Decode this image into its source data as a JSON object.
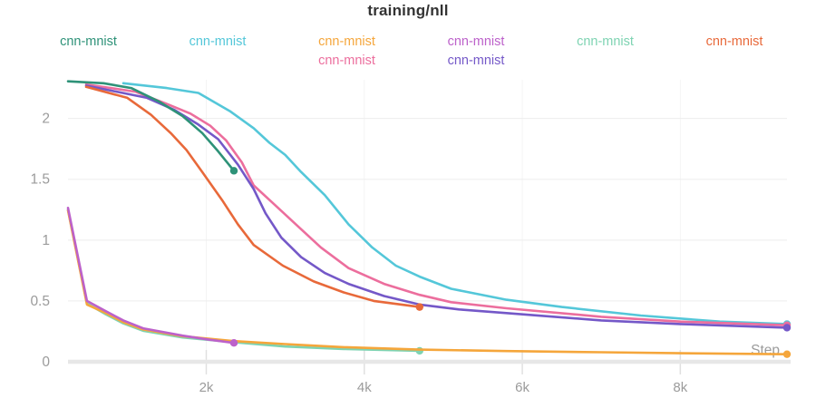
{
  "title": "training/nll",
  "legend": {
    "items": [
      {
        "label": "cnn-mnist",
        "color": "#2e9278",
        "col": 0,
        "row": 0
      },
      {
        "label": "cnn-mnist",
        "color": "#54c7d9",
        "col": 1,
        "row": 0
      },
      {
        "label": "cnn-mnist",
        "color": "#f5a63b",
        "col": 2,
        "row": 0
      },
      {
        "label": "cnn-mnist",
        "color": "#bc61ca",
        "col": 3,
        "row": 0
      },
      {
        "label": "cnn-mnist",
        "color": "#7ed3b2",
        "col": 4,
        "row": 0
      },
      {
        "label": "cnn-mnist",
        "color": "#e8693a",
        "col": 5,
        "row": 0
      },
      {
        "label": "cnn-mnist",
        "color": "#ec6e9d",
        "col": 2,
        "row": 1
      },
      {
        "label": "cnn-mnist",
        "color": "#7458c8",
        "col": 3,
        "row": 1
      }
    ]
  },
  "chart_data": {
    "type": "line",
    "title": "training/nll",
    "xlabel": "Step",
    "ylabel": "",
    "xlim": [
      250,
      9350
    ],
    "ylim": [
      0,
      2.318
    ],
    "grid": true,
    "legend_position": "top",
    "x_ticks": [
      {
        "value": 2000,
        "label": "2k"
      },
      {
        "value": 4000,
        "label": "4k"
      },
      {
        "value": 6000,
        "label": "6k"
      },
      {
        "value": 8000,
        "label": "8k"
      }
    ],
    "y_ticks": [
      {
        "value": 0,
        "label": "0"
      },
      {
        "value": 0.5,
        "label": "0.5"
      },
      {
        "value": 1,
        "label": "1"
      },
      {
        "value": 1.5,
        "label": "1.5"
      },
      {
        "value": 2,
        "label": "2"
      }
    ],
    "series": [
      {
        "name": "cnn-mnist",
        "color": "#54c7d9",
        "end_dot": true,
        "points": [
          [
            950,
            2.29
          ],
          [
            1500,
            2.25
          ],
          [
            1900,
            2.21
          ],
          [
            2300,
            2.06
          ],
          [
            2600,
            1.92
          ],
          [
            2800,
            1.8
          ],
          [
            3000,
            1.7
          ],
          [
            3200,
            1.56
          ],
          [
            3500,
            1.37
          ],
          [
            3800,
            1.13
          ],
          [
            4100,
            0.94
          ],
          [
            4400,
            0.79
          ],
          [
            4700,
            0.7
          ],
          [
            5100,
            0.6
          ],
          [
            5800,
            0.51
          ],
          [
            6500,
            0.45
          ],
          [
            7500,
            0.38
          ],
          [
            8500,
            0.33
          ],
          [
            9350,
            0.31
          ]
        ]
      },
      {
        "name": "cnn-mnist",
        "color": "#ec6e9d",
        "end_dot": true,
        "points": [
          [
            480,
            2.28
          ],
          [
            1100,
            2.22
          ],
          [
            1500,
            2.12
          ],
          [
            1800,
            2.04
          ],
          [
            2050,
            1.94
          ],
          [
            2250,
            1.82
          ],
          [
            2450,
            1.64
          ],
          [
            2600,
            1.45
          ],
          [
            2850,
            1.3
          ],
          [
            3200,
            1.09
          ],
          [
            3450,
            0.94
          ],
          [
            3800,
            0.77
          ],
          [
            4250,
            0.64
          ],
          [
            4700,
            0.55
          ],
          [
            5100,
            0.49
          ],
          [
            5800,
            0.44
          ],
          [
            7000,
            0.37
          ],
          [
            8000,
            0.33
          ],
          [
            9350,
            0.3
          ]
        ]
      },
      {
        "name": "cnn-mnist",
        "color": "#7458c8",
        "end_dot": true,
        "points": [
          [
            480,
            2.27
          ],
          [
            1250,
            2.17
          ],
          [
            1600,
            2.07
          ],
          [
            1900,
            1.95
          ],
          [
            2150,
            1.83
          ],
          [
            2400,
            1.62
          ],
          [
            2600,
            1.42
          ],
          [
            2750,
            1.22
          ],
          [
            2950,
            1.02
          ],
          [
            3200,
            0.86
          ],
          [
            3500,
            0.73
          ],
          [
            3800,
            0.64
          ],
          [
            4250,
            0.54
          ],
          [
            4700,
            0.47
          ],
          [
            5200,
            0.43
          ],
          [
            5800,
            0.4
          ],
          [
            7000,
            0.34
          ],
          [
            8000,
            0.31
          ],
          [
            9350,
            0.28
          ]
        ]
      },
      {
        "name": "cnn-mnist",
        "color": "#e8693a",
        "end_dot": true,
        "points": [
          [
            480,
            2.26
          ],
          [
            1000,
            2.17
          ],
          [
            1300,
            2.03
          ],
          [
            1550,
            1.88
          ],
          [
            1750,
            1.74
          ],
          [
            1950,
            1.56
          ],
          [
            2200,
            1.33
          ],
          [
            2400,
            1.13
          ],
          [
            2600,
            0.96
          ],
          [
            2970,
            0.79
          ],
          [
            3360,
            0.66
          ],
          [
            3740,
            0.57
          ],
          [
            4120,
            0.5
          ],
          [
            4700,
            0.45
          ]
        ]
      },
      {
        "name": "cnn-mnist",
        "color": "#7ed3b2",
        "end_dot": true,
        "points": [
          [
            250,
            1.25
          ],
          [
            490,
            0.48
          ],
          [
            730,
            0.39
          ],
          [
            950,
            0.315
          ],
          [
            1200,
            0.255
          ],
          [
            1700,
            0.2
          ],
          [
            2350,
            0.16
          ],
          [
            3000,
            0.125
          ],
          [
            3740,
            0.105
          ],
          [
            4700,
            0.09
          ]
        ]
      },
      {
        "name": "cnn-mnist",
        "color": "#f5a63b",
        "end_dot": true,
        "points": [
          [
            250,
            1.245
          ],
          [
            490,
            0.47
          ],
          [
            730,
            0.4
          ],
          [
            950,
            0.325
          ],
          [
            1200,
            0.265
          ],
          [
            1700,
            0.21
          ],
          [
            2350,
            0.17
          ],
          [
            3000,
            0.145
          ],
          [
            3740,
            0.12
          ],
          [
            4700,
            0.1
          ],
          [
            5800,
            0.088
          ],
          [
            7000,
            0.078
          ],
          [
            8000,
            0.07
          ],
          [
            9350,
            0.062
          ]
        ]
      },
      {
        "name": "cnn-mnist",
        "color": "#bc61ca",
        "end_dot": true,
        "points": [
          [
            250,
            1.265
          ],
          [
            490,
            0.5
          ],
          [
            730,
            0.415
          ],
          [
            950,
            0.34
          ],
          [
            1200,
            0.275
          ],
          [
            1700,
            0.215
          ],
          [
            2000,
            0.185
          ],
          [
            2350,
            0.155
          ]
        ]
      },
      {
        "name": "cnn-mnist",
        "color": "#2e9278",
        "end_dot": true,
        "points": [
          [
            250,
            2.305
          ],
          [
            700,
            2.29
          ],
          [
            1050,
            2.25
          ],
          [
            1400,
            2.14
          ],
          [
            1700,
            2.02
          ],
          [
            1950,
            1.88
          ],
          [
            2150,
            1.73
          ],
          [
            2350,
            1.57
          ]
        ]
      }
    ]
  },
  "colors": {
    "axis_text": "#9b9b9b",
    "grid_h": "#ededed",
    "grid_v": "#f4f4f4",
    "tick": "#e0e0e0",
    "baseline": "#e7e7e7",
    "title_text": "#333333"
  }
}
